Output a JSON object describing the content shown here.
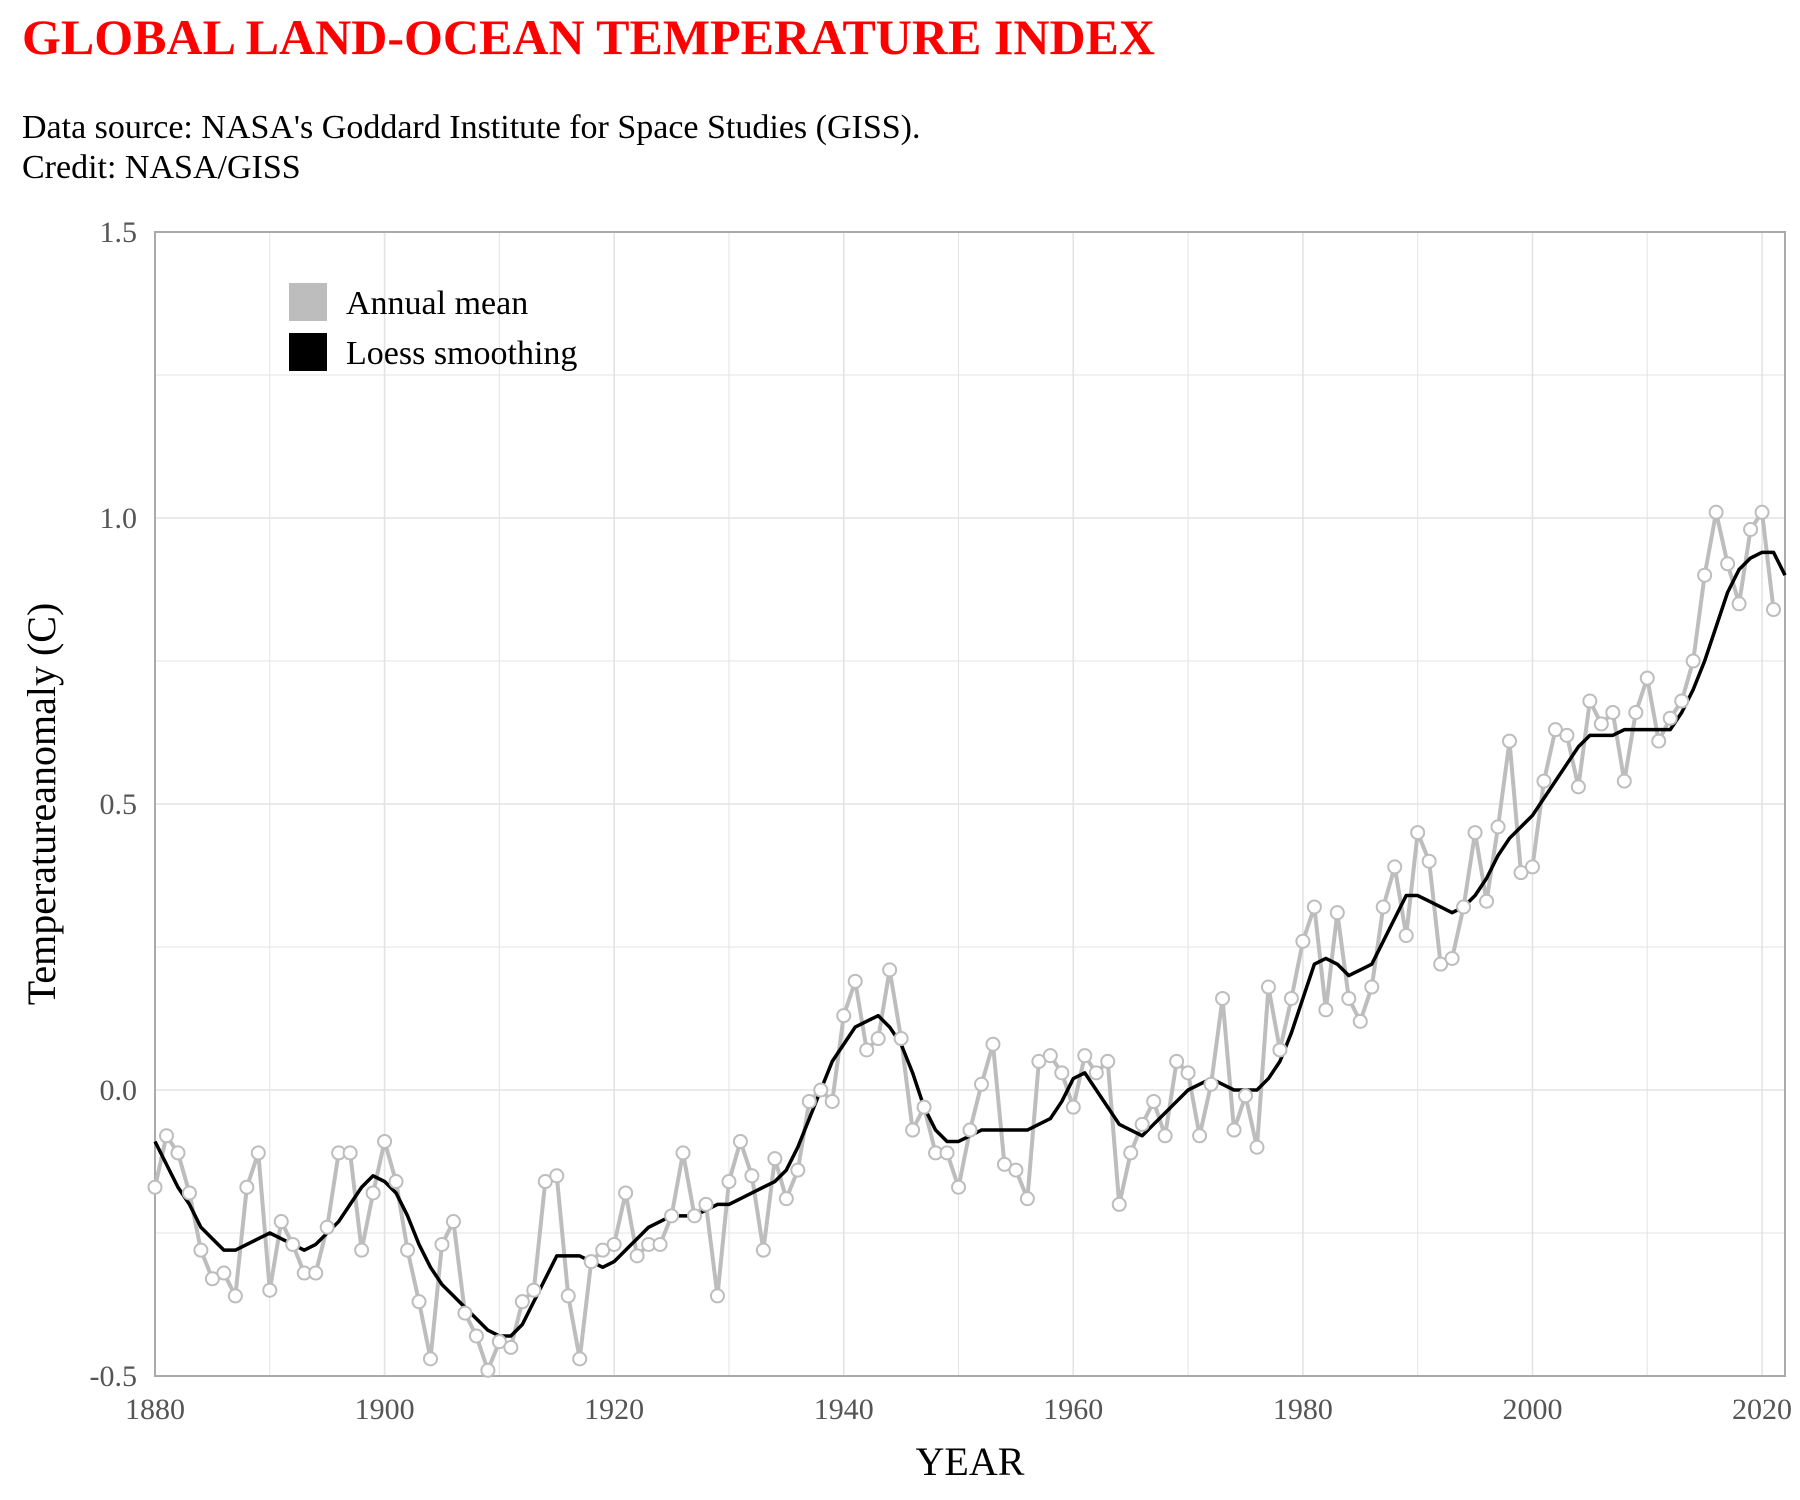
{
  "header": {
    "title": "GLOBAL LAND-OCEAN TEMPERATURE INDEX",
    "source_line": "Data source: NASA's Goddard Institute for Space Studies (GISS).",
    "credit_line": "Credit: NASA/GISS"
  },
  "colors": {
    "title": "#ff0000",
    "annual_mean": "#bdbdbd",
    "loess": "#000000",
    "grid": "#e3e3e3",
    "axis": "#aaaaaa"
  },
  "chart_data": {
    "type": "line",
    "xlabel": "YEAR",
    "ylabel": "Temperatureanomaly (C)",
    "xlim": [
      1880,
      2022
    ],
    "ylim": [
      -0.5,
      1.5
    ],
    "x_ticks": [
      "1880",
      "1900",
      "1920",
      "1940",
      "1960",
      "1980",
      "2000",
      "2020"
    ],
    "y_ticks": [
      "-0.5",
      "0.0",
      "0.5",
      "1.0",
      "1.5"
    ],
    "grid": true,
    "legend": {
      "placement": "top-left",
      "entries": [
        {
          "label": "Annual mean",
          "color": "#bdbdbd"
        },
        {
          "label": "Loess smoothing",
          "color": "#000000"
        }
      ]
    },
    "series": [
      {
        "name": "Annual mean",
        "start_year": 1880,
        "values": [
          -0.17,
          -0.08,
          -0.11,
          -0.18,
          -0.28,
          -0.33,
          -0.32,
          -0.36,
          -0.17,
          -0.11,
          -0.35,
          -0.23,
          -0.27,
          -0.32,
          -0.32,
          -0.24,
          -0.11,
          -0.11,
          -0.28,
          -0.18,
          -0.09,
          -0.16,
          -0.28,
          -0.37,
          -0.47,
          -0.27,
          -0.23,
          -0.39,
          -0.43,
          -0.49,
          -0.44,
          -0.45,
          -0.37,
          -0.35,
          -0.16,
          -0.15,
          -0.36,
          -0.47,
          -0.3,
          -0.28,
          -0.27,
          -0.18,
          -0.29,
          -0.27,
          -0.27,
          -0.22,
          -0.11,
          -0.22,
          -0.2,
          -0.36,
          -0.16,
          -0.09,
          -0.15,
          -0.28,
          -0.12,
          -0.19,
          -0.14,
          -0.02,
          0.0,
          -0.02,
          0.13,
          0.19,
          0.07,
          0.09,
          0.21,
          0.09,
          -0.07,
          -0.03,
          -0.11,
          -0.11,
          -0.17,
          -0.07,
          0.01,
          0.08,
          -0.13,
          -0.14,
          -0.19,
          0.05,
          0.06,
          0.03,
          -0.03,
          0.06,
          0.03,
          0.05,
          -0.2,
          -0.11,
          -0.06,
          -0.02,
          -0.08,
          0.05,
          0.03,
          -0.08,
          0.01,
          0.16,
          -0.07,
          -0.01,
          -0.1,
          0.18,
          0.07,
          0.16,
          0.26,
          0.32,
          0.14,
          0.31,
          0.16,
          0.12,
          0.18,
          0.32,
          0.39,
          0.27,
          0.45,
          0.4,
          0.22,
          0.23,
          0.32,
          0.45,
          0.33,
          0.46,
          0.61,
          0.38,
          0.39,
          0.54,
          0.63,
          0.62,
          0.53,
          0.68,
          0.64,
          0.66,
          0.54,
          0.66,
          0.72,
          0.61,
          0.65,
          0.68,
          0.75,
          0.9,
          1.01,
          0.92,
          0.85,
          0.98,
          1.01,
          0.84
        ]
      },
      {
        "name": "Loess smoothing",
        "start_year": 1880,
        "values": [
          -0.09,
          -0.13,
          -0.17,
          -0.2,
          -0.24,
          -0.26,
          -0.28,
          -0.28,
          -0.27,
          -0.26,
          -0.25,
          -0.26,
          -0.27,
          -0.28,
          -0.27,
          -0.25,
          -0.23,
          -0.2,
          -0.17,
          -0.15,
          -0.16,
          -0.18,
          -0.22,
          -0.27,
          -0.31,
          -0.34,
          -0.36,
          -0.38,
          -0.4,
          -0.42,
          -0.43,
          -0.43,
          -0.41,
          -0.37,
          -0.33,
          -0.29,
          -0.29,
          -0.29,
          -0.3,
          -0.31,
          -0.3,
          -0.28,
          -0.26,
          -0.24,
          -0.23,
          -0.22,
          -0.22,
          -0.22,
          -0.21,
          -0.2,
          -0.2,
          -0.19,
          -0.18,
          -0.17,
          -0.16,
          -0.14,
          -0.1,
          -0.05,
          0.0,
          0.05,
          0.08,
          0.11,
          0.12,
          0.13,
          0.11,
          0.08,
          0.03,
          -0.03,
          -0.07,
          -0.09,
          -0.09,
          -0.08,
          -0.07,
          -0.07,
          -0.07,
          -0.07,
          -0.07,
          -0.06,
          -0.05,
          -0.02,
          0.02,
          0.03,
          0.0,
          -0.03,
          -0.06,
          -0.07,
          -0.08,
          -0.06,
          -0.04,
          -0.02,
          0.0,
          0.01,
          0.02,
          0.01,
          0.0,
          0.0,
          0.0,
          0.02,
          0.05,
          0.1,
          0.16,
          0.22,
          0.23,
          0.22,
          0.2,
          0.21,
          0.22,
          0.26,
          0.3,
          0.34,
          0.34,
          0.33,
          0.32,
          0.31,
          0.32,
          0.34,
          0.37,
          0.41,
          0.44,
          0.46,
          0.48,
          0.51,
          0.54,
          0.57,
          0.6,
          0.62,
          0.62,
          0.62,
          0.63,
          0.63,
          0.63,
          0.63,
          0.63,
          0.66,
          0.7,
          0.75,
          0.81,
          0.87,
          0.91,
          0.93,
          0.94,
          0.94,
          0.9
        ]
      }
    ]
  }
}
